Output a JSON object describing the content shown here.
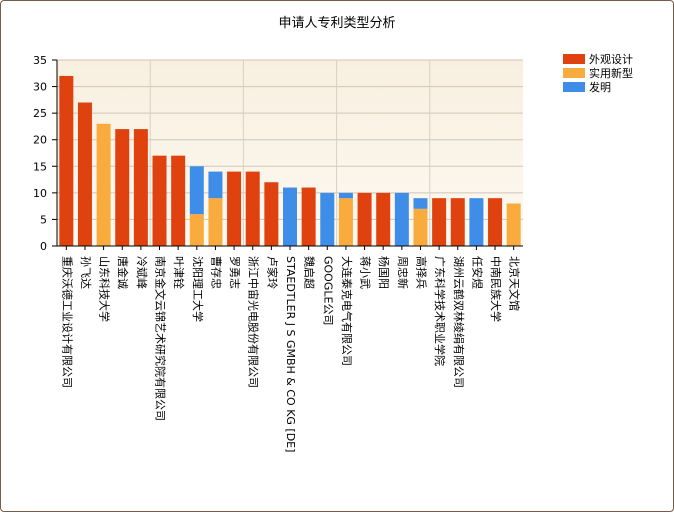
{
  "chart_data": {
    "type": "bar",
    "stacked": true,
    "title": "申请人专利类型分析",
    "xlabel": "",
    "ylabel": "",
    "ylim": [
      0,
      35
    ],
    "yticks": [
      0,
      5,
      10,
      15,
      20,
      25,
      30,
      35
    ],
    "grid": true,
    "legend_position": "top-right",
    "categories": [
      "重庆沃德工业设计有限公司",
      "孙飞达",
      "山东科技大学",
      "唐金诚",
      "冷斌峰",
      "南京金文云锦艺术研究院有限公司",
      "叶津铨",
      "沈阳理工大学",
      "曹存忠",
      "罗勇志",
      "浙江中宙光电股份有限公司",
      "卢家玲",
      "STAEDTLER J S GMBH & CO KG [DE]",
      "魏启超",
      "GOOGLE公司",
      "大连泰克电气有限公司",
      "蒋小武",
      "杨国阳",
      "周忠新",
      "高择兵",
      "广东科学技术职业学院",
      "湖州云鹤双林绫绢有限公司",
      "任安煜",
      "中南民族大学",
      "北京天文馆"
    ],
    "series": [
      {
        "name": "外观设计",
        "color": "#e0420f",
        "values": [
          32,
          27,
          0,
          22,
          22,
          17,
          17,
          0,
          0,
          14,
          14,
          12,
          0,
          11,
          0,
          0,
          10,
          10,
          0,
          0,
          9,
          9,
          0,
          9,
          0
        ]
      },
      {
        "name": "实用新型",
        "color": "#f9ac3d",
        "values": [
          0,
          0,
          23,
          0,
          0,
          0,
          0,
          6,
          9,
          0,
          0,
          0,
          0,
          0,
          0,
          9,
          0,
          0,
          0,
          7,
          0,
          0,
          0,
          0,
          8
        ]
      },
      {
        "name": "发明",
        "color": "#3e8de8",
        "values": [
          0,
          0,
          0,
          0,
          0,
          0,
          0,
          9,
          5,
          0,
          0,
          0,
          11,
          0,
          10,
          1,
          0,
          0,
          10,
          2,
          0,
          0,
          9,
          0,
          0
        ]
      }
    ]
  }
}
